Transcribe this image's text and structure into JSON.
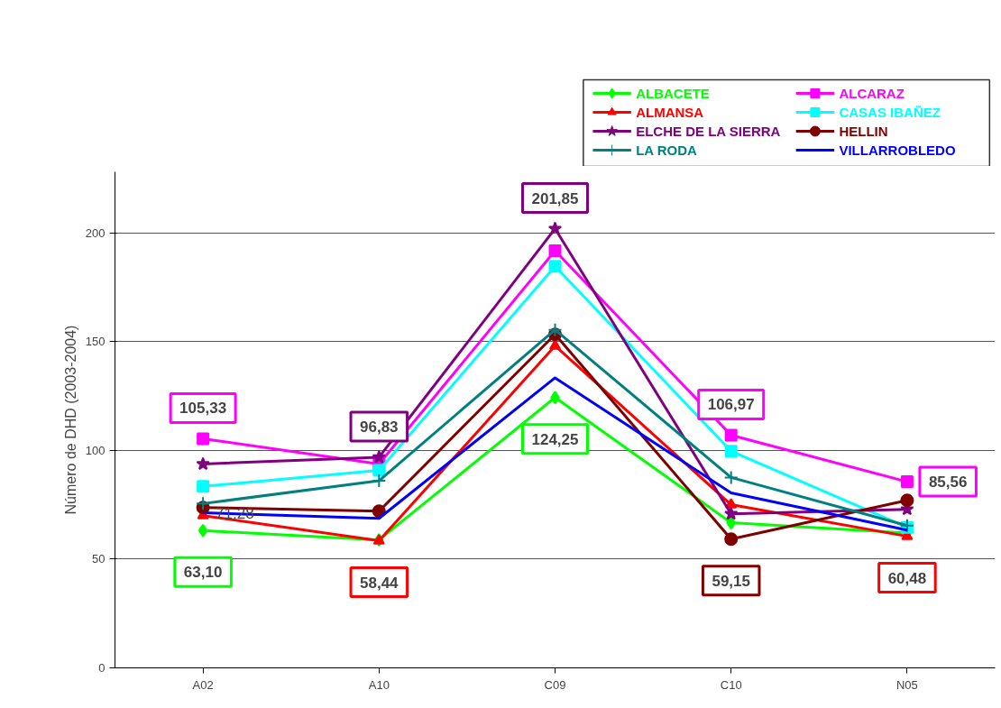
{
  "chart_data": {
    "type": "line",
    "ylabel": "Número de DHD (2003-2004)",
    "categories": [
      "A02",
      "A10",
      "C09",
      "C10",
      "N05"
    ],
    "ylim": [
      0,
      228
    ],
    "yticks": [
      0,
      50,
      100,
      150,
      200
    ],
    "grid": "y",
    "legend": "top right",
    "series": [
      {
        "name": "ALBACETE",
        "color": "#00ff00",
        "marker": "diamond",
        "values": [
          63.1,
          58.8,
          124.25,
          66.7,
          62
        ],
        "value_labels": [
          "63,10",
          null,
          "124,25",
          null,
          null
        ]
      },
      {
        "name": "ALCARAZ",
        "color": "#ff00ff",
        "marker": "square",
        "values": [
          105.33,
          93.7,
          191.7,
          106.97,
          85.56
        ],
        "value_labels": [
          "105,33",
          null,
          null,
          "106,97",
          "85,56"
        ]
      },
      {
        "name": "ALMANSA",
        "color": "#ff0000",
        "marker": "triangle",
        "values": [
          70,
          58.44,
          148,
          75,
          60.48
        ],
        "value_labels": [
          null,
          "58,44",
          null,
          null,
          "60,48"
        ]
      },
      {
        "name": "CASAS IBAÑEZ",
        "color": "#00ffff",
        "marker": "square",
        "values": [
          83.4,
          90.8,
          184.6,
          99.6,
          64.6
        ]
      },
      {
        "name": "ELCHE DE LA SIERRA",
        "color": "#800080",
        "marker": "star",
        "values": [
          93.7,
          96.83,
          201.85,
          70.8,
          72.9
        ],
        "value_labels": [
          null,
          "96,83",
          "201,85",
          null,
          null
        ]
      },
      {
        "name": "HELLIN",
        "color": "#800000",
        "marker": "circle",
        "values": [
          73.7,
          72,
          153.3,
          59.15,
          77
        ],
        "value_labels": [
          null,
          null,
          null,
          "59,15",
          null
        ]
      },
      {
        "name": "LA RODA",
        "color": "#008080",
        "marker": "cross",
        "values": [
          75.5,
          86,
          155.4,
          87.5,
          65.4
        ]
      },
      {
        "name": "VILLARROBLEDO",
        "color": "#0000ff",
        "marker": "none",
        "values": [
          71.28,
          68.7,
          133.3,
          80.4,
          63.3
        ],
        "value_labels": [
          "71,28",
          null,
          null,
          null,
          null
        ]
      }
    ]
  }
}
